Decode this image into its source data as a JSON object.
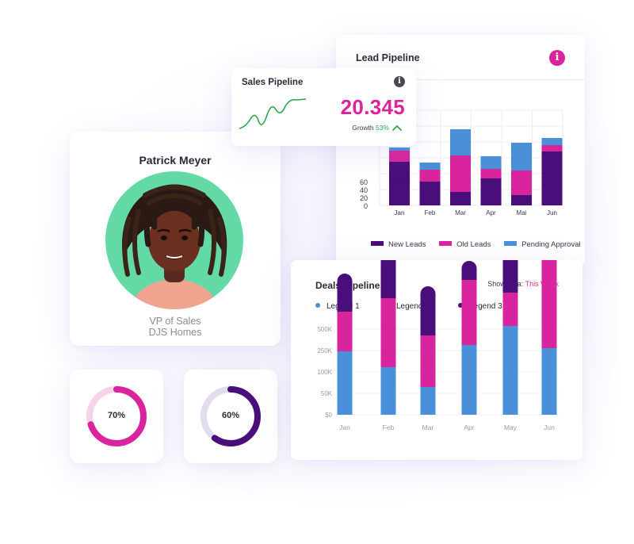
{
  "colors": {
    "dark_purple": "#4a0e7a",
    "magenta": "#d9259d",
    "blue": "#4a90d9",
    "green": "#2aa84a",
    "avatar_bg": "#63d9a6"
  },
  "profile": {
    "name": "Patrick Meyer",
    "role": "VP of Sales",
    "company": "DJS Homes"
  },
  "donuts": [
    {
      "label": "70%",
      "value": 0.7,
      "color": "#d9259d"
    },
    {
      "label": "60%",
      "value": 0.6,
      "color": "#4a0e7a"
    }
  ],
  "sales_pipeline": {
    "title": "Sales Pipeline",
    "info_icon": "info-icon",
    "value": "20.345",
    "growth_label": "Growth",
    "growth_value": "53%",
    "trend_icon": "chevron-up-icon"
  },
  "chart_data": [
    {
      "type": "bar",
      "title": "Lead Pipeline",
      "stacked": true,
      "categories": [
        "Jan",
        "Feb",
        "Mar",
        "Apr",
        "Mai",
        "Jun"
      ],
      "y_ticks": [
        "0",
        "20",
        "40",
        "60"
      ],
      "ylim": [
        0,
        120
      ],
      "series": [
        {
          "name": "New Leads",
          "color": "#4a0e7a",
          "values": [
            55,
            30,
            17,
            34,
            13,
            68
          ]
        },
        {
          "name": "Old Leads",
          "color": "#d9259d",
          "values": [
            14,
            15,
            46,
            12,
            31,
            8
          ]
        },
        {
          "name": "Pending Approval",
          "color": "#4a90d9",
          "values": [
            4,
            9,
            33,
            16,
            35,
            9
          ]
        }
      ],
      "legend": "bottom"
    },
    {
      "type": "bar",
      "title": "Deals Pipeline",
      "stacked": true,
      "show_data_label": "Show data:",
      "show_data_value": "This Week",
      "categories": [
        "Jan",
        "Feb",
        "Mar",
        "Apr",
        "May",
        "Jun"
      ],
      "y_ticks": [
        "$0",
        "50K",
        "100K",
        "250K",
        "500K"
      ],
      "series": [
        {
          "name": "Legend 1",
          "color": "#4a90d9",
          "values": [
            80,
            60,
            35,
            88,
            112,
            84
          ]
        },
        {
          "name": "Legend 2",
          "color": "#d9259d",
          "values": [
            50,
            87,
            65,
            82,
            42,
            111
          ]
        },
        {
          "name": "Legend 3",
          "color": "#4a0e7a",
          "values": [
            48,
            56,
            62,
            24,
            64,
            28
          ]
        }
      ],
      "y_scale_note": "values in chart units 0-136 for axis ticks $0..500K",
      "legend": "top-left"
    }
  ]
}
